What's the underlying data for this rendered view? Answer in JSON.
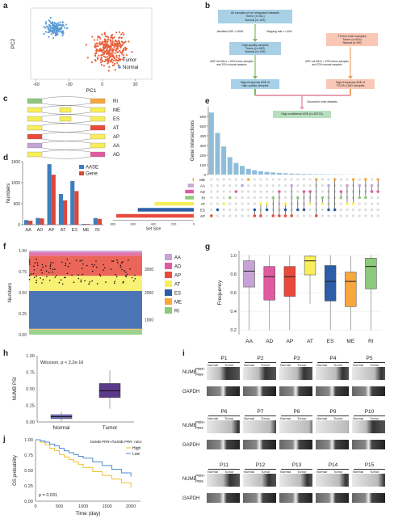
{
  "figure": {
    "panel_labels": [
      "a",
      "b",
      "c",
      "d",
      "e",
      "f",
      "g",
      "h",
      "i",
      "j"
    ]
  },
  "colors": {
    "tumor": "#e8603c",
    "normal": "#5b9bd5",
    "aase": "#3d7ebf",
    "gene": "#d94a3a",
    "box_left": "#a8d0e6",
    "box_right": "#f9c7b5",
    "box_final": "#b7dfbf",
    "arrow_green": "#7aba60",
    "arrow_orange": "#f0a060",
    "arrow_pink": "#e8a0b0",
    "violin": "#5a3a8a",
    "normal_box": "#7070c0",
    "AA": "#c5a3d6",
    "AD": "#e05aa0",
    "AP": "#e84b3c",
    "AT": "#f7ee5a",
    "ES": "#2c5da8",
    "ME": "#f7a73c",
    "RI": "#8cc97a"
  },
  "panel_a": {
    "chart_data": {
      "type": "scatter",
      "xlabel": "PC1",
      "ylabel": "PC2",
      "xticks": [
        "-60",
        "-30",
        "0",
        "30"
      ],
      "xlim": [
        -65,
        45
      ],
      "ylim": [
        -45,
        50
      ],
      "series": [
        {
          "name": "Tumor"
        },
        {
          "name": "Normal"
        }
      ]
    }
  },
  "panel_b": {
    "all_samples": "All samples of our integrated datasets\nTumor (n=311)\nNormal (n=153)",
    "filter1": "Identified ASE >=5000",
    "filter2": "Mapping rate >= 60%",
    "hq_samples": "High-quality samples\nTumor (n=280)\nNormal (n=145)",
    "tcga_samples": "TCGA LUAD samples\nTumor (n=514)\nNormal (n=59)",
    "filter_left": "ASE not NA in > 20% tumor samples\nand 20% normal samples",
    "filter_right": "ASE not NA in > 20% tumor samples\nand 20% normal samples",
    "hf_left": "High-frequency ASE of\nhigh-quality samples",
    "hf_right": "High-frequency ASE of\nTCGA LUAD samples",
    "occurred": "Occurred in both datasets",
    "final": "High-confidence ASE (n=28774)"
  },
  "panel_c": {
    "types": [
      "RI",
      "ME",
      "ES",
      "AT",
      "AP",
      "AA",
      "AD"
    ]
  },
  "panel_d": {
    "chart_data": {
      "type": "bar",
      "ylabel": "Numbers",
      "categories": [
        "AA",
        "AD",
        "AP",
        "AT",
        "ES",
        "ME",
        "RI"
      ],
      "series": [
        {
          "name": "AASE",
          "values": [
            110,
            160,
            1440,
            730,
            1040,
            20,
            160
          ]
        },
        {
          "name": "Gene",
          "values": [
            95,
            150,
            1190,
            580,
            800,
            15,
            140
          ]
        }
      ],
      "ylim": [
        0,
        1500
      ],
      "yticks": [
        "0",
        "500",
        "1000",
        "1500"
      ]
    }
  },
  "panel_e": {
    "chart_data": {
      "type": "bar",
      "ylabel": "Gene Intersections",
      "yticks": [
        "0",
        "100",
        "200",
        "300",
        "400",
        "500",
        "600"
      ],
      "ylim": [
        0,
        700
      ],
      "values": [
        640,
        430,
        290,
        180,
        120,
        90,
        60,
        45,
        35,
        28,
        22,
        18,
        14,
        11,
        9,
        7,
        6,
        5,
        4,
        3,
        3,
        2,
        2,
        2,
        1,
        1,
        1,
        1
      ],
      "sets": [
        "ME",
        "AA",
        "AD",
        "RI",
        "AT",
        "ES",
        "AP"
      ],
      "set_size_label": "Set Size",
      "set_size_ticks": [
        "800",
        "600",
        "400",
        "200",
        "0"
      ],
      "set_sizes": [
        20,
        110,
        160,
        160,
        730,
        1040,
        1440
      ]
    }
  },
  "panel_f": {
    "chart_data": {
      "type": "area",
      "ylabel": "Numbers",
      "yticks_left": [
        "0.00",
        "0.25",
        "0.50",
        "0.75",
        "1.00"
      ],
      "yticks_right": [
        "3000",
        "2000",
        "1000"
      ],
      "legend": [
        "AA",
        "AD",
        "AP",
        "AT",
        "ES",
        "ME",
        "RI"
      ],
      "stack_fractions": [
        {
          "name": "RI",
          "value": 0.06
        },
        {
          "name": "ME",
          "value": 0.01
        },
        {
          "name": "ES",
          "value": 0.45
        },
        {
          "name": "AT",
          "value": 0.18
        },
        {
          "name": "AP",
          "value": 0.24
        },
        {
          "name": "AD",
          "value": 0.04
        },
        {
          "name": "AA",
          "value": 0.02
        }
      ]
    }
  },
  "panel_g": {
    "chart_data": {
      "type": "box",
      "ylabel": "Frequency",
      "yticks": [
        "0.2",
        "0.4",
        "0.6",
        "0.8",
        "1.0"
      ],
      "ylim": [
        0.15,
        1.05
      ],
      "categories": [
        "AA",
        "AD",
        "AP",
        "AT",
        "ES",
        "ME",
        "RI"
      ],
      "boxes": [
        {
          "q1": 0.66,
          "median": 0.83,
          "q3": 0.94,
          "lo": 0.2,
          "hi": 1.0
        },
        {
          "q1": 0.52,
          "median": 0.77,
          "q3": 0.88,
          "lo": 0.2,
          "hi": 1.0
        },
        {
          "q1": 0.56,
          "median": 0.77,
          "q3": 0.88,
          "lo": 0.2,
          "hi": 1.0
        },
        {
          "q1": 0.79,
          "median": 0.94,
          "q3": 0.99,
          "lo": 0.48,
          "hi": 1.0
        },
        {
          "q1": 0.51,
          "median": 0.72,
          "q3": 0.89,
          "lo": 0.2,
          "hi": 1.0
        },
        {
          "q1": 0.45,
          "median": 0.72,
          "q3": 0.82,
          "lo": 0.2,
          "hi": 0.99
        },
        {
          "q1": 0.64,
          "median": 0.88,
          "q3": 0.97,
          "lo": 0.2,
          "hi": 1.0
        }
      ]
    }
  },
  "panel_h": {
    "chart_data": {
      "type": "box",
      "ylabel": "NUMB PSI",
      "yticks": [
        "0.00",
        "0.25",
        "0.50",
        "0.75",
        "1.00"
      ],
      "ylim": [
        0,
        1
      ],
      "categories": [
        "Normal",
        "Tumor"
      ],
      "annotation": "Wilcoxon, p < 2.2e-16",
      "boxes": [
        {
          "q1": 0.05,
          "median": 0.08,
          "q3": 0.11,
          "lo": 0.01,
          "hi": 0.16
        },
        {
          "q1": 0.37,
          "median": 0.47,
          "q3": 0.58,
          "lo": 0.2,
          "hi": 0.78
        }
      ]
    }
  },
  "panel_i": {
    "patients_row1": [
      "P1",
      "P2",
      "P3",
      "P4",
      "P5"
    ],
    "patients_row2": [
      "P6",
      "P7",
      "P8",
      "P9",
      "P10"
    ],
    "patients_row3": [
      "P11",
      "P12",
      "P13",
      "P14",
      "P15"
    ],
    "normal": "Normal",
    "tumor": "Tumor",
    "numb_label": "NUMB",
    "prr_plus": "PRR+",
    "prr_minus": "PRR-",
    "gapdh": "GAPDH"
  },
  "panel_j": {
    "chart_data": {
      "type": "line",
      "xlabel": "Time (day)",
      "ylabel": "OS probability",
      "xticks": [
        "0",
        "500",
        "1000",
        "1500",
        "2000"
      ],
      "yticks": [
        "0.00",
        "0.25",
        "0.50",
        "0.75",
        "1.00"
      ],
      "xlim": [
        0,
        2200
      ],
      "ylim": [
        0,
        1
      ],
      "legend_title": "NUMB PRR+/NUMB PRR- ratio:",
      "pvalue": "p = 0.031",
      "series": [
        {
          "name": "High",
          "x": [
            0,
            100,
            200,
            300,
            400,
            500,
            600,
            700,
            800,
            900,
            1000,
            1200,
            1400,
            1600,
            1800,
            2000
          ],
          "values": [
            1.0,
            0.96,
            0.92,
            0.86,
            0.82,
            0.76,
            0.72,
            0.68,
            0.64,
            0.6,
            0.55,
            0.48,
            0.42,
            0.36,
            0.3,
            0.22
          ]
        },
        {
          "name": "Low",
          "x": [
            0,
            100,
            200,
            300,
            400,
            500,
            600,
            700,
            800,
            900,
            1000,
            1200,
            1400,
            1600,
            1800,
            2000
          ],
          "values": [
            1.0,
            0.98,
            0.96,
            0.93,
            0.9,
            0.86,
            0.82,
            0.79,
            0.76,
            0.73,
            0.7,
            0.64,
            0.58,
            0.52,
            0.46,
            0.4
          ]
        }
      ]
    }
  }
}
